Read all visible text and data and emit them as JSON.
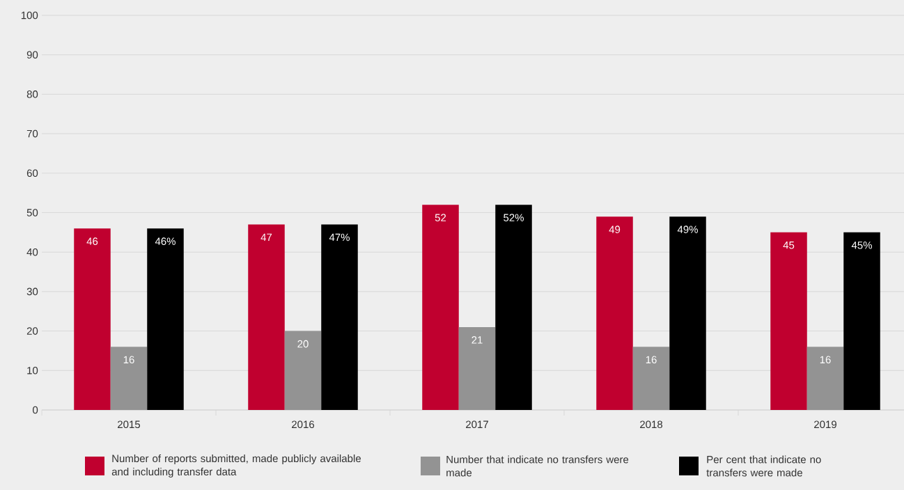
{
  "chart_data": {
    "type": "bar",
    "categories": [
      "2015",
      "2016",
      "2017",
      "2018",
      "2019"
    ],
    "series": [
      {
        "name": "Number of reports submitted, made publicly available and including transfer data",
        "color": "#c0002f",
        "values": [
          46,
          47,
          52,
          49,
          45
        ],
        "value_labels": [
          "46",
          "47",
          "52",
          "49",
          "45"
        ]
      },
      {
        "name": "Number that indicate no transfers were made",
        "color": "#939393",
        "values": [
          16,
          20,
          21,
          16,
          16
        ],
        "value_labels": [
          "16",
          "20",
          "21",
          "16",
          "16"
        ]
      },
      {
        "name": "Per cent that indicate no transfers were made",
        "color": "#000000",
        "values": [
          46,
          47,
          52,
          49,
          45
        ],
        "value_labels": [
          "46%",
          "47%",
          "52%",
          "49%",
          "45%"
        ]
      }
    ],
    "ylim": [
      0,
      100
    ],
    "yticks": [
      0,
      10,
      20,
      30,
      40,
      50,
      60,
      70,
      80,
      90,
      100
    ],
    "grid": "y",
    "legend": "bottom"
  }
}
